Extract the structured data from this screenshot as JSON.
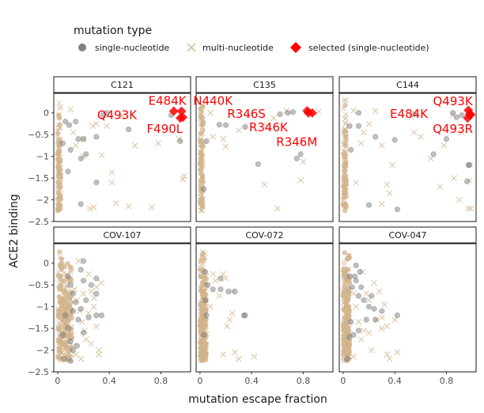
{
  "chart_data": {
    "type": "scatter",
    "xlabel": "mutation escape fraction",
    "ylabel": "ACE2 binding",
    "xlim": [
      -0.03,
      1.03
    ],
    "ylim": [
      -2.5,
      0.45
    ],
    "xticks": [
      0,
      0.4,
      0.8
    ],
    "xtick_labels": [
      "0",
      "0.4",
      "0.8"
    ],
    "yticks": [
      0,
      -0.5,
      -1,
      -1.5,
      -2,
      -2.5
    ],
    "ytick_labels": [
      "0",
      "−0.5",
      "−1",
      "−1.5",
      "−2",
      "−2.5"
    ],
    "grid": false,
    "legend": {
      "title": "mutation type",
      "position": "top-left",
      "items": [
        {
          "label": "single-nucleotide",
          "marker": "circle",
          "color": "#808080"
        },
        {
          "label": "multi-nucleotide",
          "marker": "x",
          "color": "#d2b48c"
        },
        {
          "label": "selected (single-nucleotide)",
          "marker": "diamond",
          "color": "#ff0000"
        }
      ]
    },
    "colors": {
      "single": "#808080",
      "multi": "#d2b48c",
      "selected": "#ff0000"
    },
    "facets": [
      {
        "name": "C121",
        "single": [
          [
            0.06,
            -0.2
          ],
          [
            0.09,
            -0.28
          ],
          [
            0.14,
            -0.2
          ],
          [
            0.16,
            -0.6
          ],
          [
            0.2,
            -0.6
          ],
          [
            0.22,
            -0.95
          ],
          [
            0.18,
            -1.05
          ],
          [
            0.3,
            -1.6
          ],
          [
            0.18,
            -2.1
          ],
          [
            0.3,
            -0.55
          ],
          [
            0.35,
            -0.05
          ],
          [
            0.38,
            0.0
          ],
          [
            0.55,
            -0.38
          ],
          [
            0.88,
            -0.05
          ],
          [
            0.95,
            -0.65
          ],
          [
            0.08,
            -1.35
          ],
          [
            0.1,
            -0.85
          ],
          [
            0.04,
            -0.7
          ]
        ],
        "multi": [
          [
            0.1,
            0.08
          ],
          [
            0.12,
            -0.45
          ],
          [
            0.14,
            -0.75
          ],
          [
            0.2,
            -1.0
          ],
          [
            0.27,
            -0.3
          ],
          [
            0.3,
            -0.25
          ],
          [
            0.34,
            -0.97
          ],
          [
            0.38,
            -0.3
          ],
          [
            0.42,
            -1.37
          ],
          [
            0.45,
            -2.08
          ],
          [
            0.5,
            -0.07
          ],
          [
            0.55,
            -2.15
          ],
          [
            0.6,
            -0.75
          ],
          [
            0.73,
            -2.17
          ],
          [
            0.78,
            -0.7
          ],
          [
            0.94,
            -0.6
          ],
          [
            0.98,
            -1.45
          ],
          [
            0.97,
            -1.53
          ],
          [
            0.25,
            -2.2
          ],
          [
            0.28,
            -2.17
          ],
          [
            0.2,
            -0.6
          ],
          [
            0.42,
            -1.6
          ]
        ],
        "selected": [
          [
            0.9,
            0.04
          ],
          [
            0.96,
            0.04
          ],
          [
            0.97,
            -0.1
          ],
          [
            0.95,
            -0.12
          ]
        ],
        "annotations": [
          {
            "label": "E484K",
            "x": 0.85,
            "y": 0.28
          },
          {
            "label": "Q493K",
            "x": 0.46,
            "y": -0.05
          },
          {
            "label": "F490L",
            "x": 0.83,
            "y": -0.37
          }
        ]
      },
      {
        "name": "C135",
        "single": [
          [
            0.2,
            -0.28
          ],
          [
            0.15,
            -0.27
          ],
          [
            0.35,
            -0.32
          ],
          [
            0.45,
            -1.18
          ],
          [
            0.75,
            -1.05
          ],
          [
            0.78,
            -0.95
          ],
          [
            0.62,
            -0.03
          ],
          [
            0.68,
            0.0
          ],
          [
            0.72,
            0.02
          ],
          [
            0.05,
            -0.65
          ],
          [
            0.03,
            -1.75
          ]
        ],
        "multi": [
          [
            0.08,
            0.0
          ],
          [
            0.1,
            -0.55
          ],
          [
            0.18,
            -0.6
          ],
          [
            0.2,
            -0.77
          ],
          [
            0.38,
            -0.05
          ],
          [
            0.5,
            -1.65
          ],
          [
            0.57,
            -0.12
          ],
          [
            0.6,
            -2.2
          ],
          [
            0.67,
            0.05
          ],
          [
            0.8,
            -1.12
          ],
          [
            0.78,
            -1.55
          ],
          [
            0.52,
            -0.3
          ],
          [
            0.3,
            -0.4
          ],
          [
            0.92,
            0.03
          ]
        ],
        "selected": [
          [
            0.83,
            0.05
          ],
          [
            0.84,
            0.0
          ],
          [
            0.87,
            0.0
          ]
        ],
        "annotations": [
          {
            "label": "N440K",
            "x": 0.1,
            "y": 0.28
          },
          {
            "label": "R346S",
            "x": 0.36,
            "y": -0.02
          },
          {
            "label": "R346K",
            "x": 0.53,
            "y": -0.33
          },
          {
            "label": "R346M",
            "x": 0.75,
            "y": -0.67
          }
        ]
      },
      {
        "name": "C144",
        "single": [
          [
            0.05,
            -0.3
          ],
          [
            0.06,
            -0.85
          ],
          [
            0.12,
            -0.3
          ],
          [
            0.2,
            -2.12
          ],
          [
            0.25,
            -0.55
          ],
          [
            0.42,
            -2.22
          ],
          [
            0.4,
            -0.62
          ],
          [
            0.55,
            -0.03
          ],
          [
            0.7,
            -0.95
          ],
          [
            0.8,
            -0.6
          ],
          [
            0.85,
            0.0
          ],
          [
            0.88,
            -0.1
          ],
          [
            0.92,
            -0.05
          ],
          [
            0.97,
            -1.2
          ],
          [
            0.98,
            -1.2
          ],
          [
            0.96,
            -1.58
          ],
          [
            0.12,
            0.0
          ]
        ],
        "multi": [
          [
            0.08,
            0.05
          ],
          [
            0.1,
            -1.6
          ],
          [
            0.14,
            -0.7
          ],
          [
            0.16,
            -0.45
          ],
          [
            0.25,
            0.05
          ],
          [
            0.3,
            -0.75
          ],
          [
            0.34,
            -1.65
          ],
          [
            0.36,
            -1.85
          ],
          [
            0.38,
            -1.2
          ],
          [
            0.53,
            -0.1
          ],
          [
            0.55,
            -0.45
          ],
          [
            0.6,
            -0.55
          ],
          [
            0.68,
            -1.05
          ],
          [
            0.75,
            -1.7
          ],
          [
            0.78,
            -0.75
          ],
          [
            0.86,
            -1.5
          ],
          [
            0.92,
            -0.45
          ],
          [
            0.97,
            -2.2
          ],
          [
            0.99,
            -2.2
          ],
          [
            0.98,
            -1.55
          ],
          [
            0.3,
            -2.1
          ],
          [
            0.2,
            -0.25
          ],
          [
            0.9,
            -2.0
          ],
          [
            0.85,
            -0.05
          ]
        ],
        "selected": [
          [
            0.97,
            0.06
          ],
          [
            0.98,
            -0.03
          ],
          [
            0.99,
            -0.04
          ],
          [
            0.965,
            -0.12
          ]
        ],
        "annotations": [
          {
            "label": "Q493K",
            "x": 0.85,
            "y": 0.27
          },
          {
            "label": "E484K",
            "x": 0.51,
            "y": -0.02
          },
          {
            "label": "Q493R",
            "x": 0.85,
            "y": -0.37
          }
        ]
      },
      {
        "name": "COV-107",
        "single": [
          [
            0.08,
            -0.3
          ],
          [
            0.1,
            -0.5
          ],
          [
            0.12,
            -0.7
          ],
          [
            0.14,
            -0.9
          ],
          [
            0.06,
            -1.2
          ],
          [
            0.08,
            -1.5
          ],
          [
            0.1,
            -1.8
          ],
          [
            0.12,
            -2.0
          ],
          [
            0.16,
            -1.3
          ],
          [
            0.18,
            -1.05
          ],
          [
            0.2,
            -0.4
          ],
          [
            0.22,
            -0.85
          ],
          [
            0.24,
            -1.25
          ],
          [
            0.26,
            -0.5
          ],
          [
            0.3,
            -0.35
          ],
          [
            0.3,
            -0.7
          ],
          [
            0.3,
            -1.2
          ],
          [
            0.34,
            -1.2
          ],
          [
            0.2,
            -1.6
          ],
          [
            0.15,
            -1.9
          ],
          [
            0.05,
            -2.2
          ],
          [
            0.1,
            -2.25
          ],
          [
            0.12,
            -1.1
          ],
          [
            0.18,
            -0.15
          ],
          [
            0.2,
            0.05
          ],
          [
            0.04,
            -1.65
          ]
        ],
        "multi": [
          [
            0.1,
            -0.4
          ],
          [
            0.13,
            -0.6
          ],
          [
            0.15,
            -0.85
          ],
          [
            0.17,
            -1.1
          ],
          [
            0.19,
            -1.35
          ],
          [
            0.21,
            -1.55
          ],
          [
            0.24,
            -0.25
          ],
          [
            0.26,
            -0.65
          ],
          [
            0.28,
            -1.0
          ],
          [
            0.3,
            -1.45
          ],
          [
            0.32,
            -2.0
          ],
          [
            0.32,
            -2.1
          ],
          [
            0.26,
            -1.85
          ],
          [
            0.22,
            -1.75
          ],
          [
            0.18,
            -2.2
          ],
          [
            0.14,
            -2.1
          ],
          [
            0.3,
            -0.55
          ],
          [
            0.34,
            -0.45
          ],
          [
            0.12,
            -1.9
          ],
          [
            0.08,
            -1.45
          ],
          [
            0.16,
            0.05
          ],
          [
            0.24,
            -1.15
          ],
          [
            0.28,
            -0.8
          ],
          [
            0.2,
            -0.7
          ]
        ],
        "selected": [],
        "annotations": []
      },
      {
        "name": "COV-072",
        "single": [
          [
            0.04,
            -0.2
          ],
          [
            0.06,
            -0.5
          ],
          [
            0.1,
            -0.6
          ],
          [
            0.16,
            -0.6
          ],
          [
            0.16,
            -0.35
          ],
          [
            0.22,
            -0.65
          ],
          [
            0.27,
            -0.65
          ],
          [
            0.34,
            -1.2
          ],
          [
            0.35,
            -1.2
          ],
          [
            0.04,
            -0.85
          ],
          [
            0.05,
            -1.2
          ],
          [
            0.03,
            -1.65
          ]
        ],
        "multi": [
          [
            0.05,
            -0.3
          ],
          [
            0.1,
            -0.25
          ],
          [
            0.12,
            -0.4
          ],
          [
            0.18,
            -0.25
          ],
          [
            0.2,
            -0.35
          ],
          [
            0.21,
            -1.45
          ],
          [
            0.23,
            -1.3
          ],
          [
            0.25,
            -1.15
          ],
          [
            0.27,
            -2.05
          ],
          [
            0.3,
            -2.2
          ],
          [
            0.25,
            -0.65
          ],
          [
            0.42,
            -2.15
          ],
          [
            0.18,
            -2.1
          ],
          [
            0.15,
            -0.75
          ],
          [
            0.08,
            -1.0
          ]
        ],
        "selected": [],
        "annotations": []
      },
      {
        "name": "COV-047",
        "single": [
          [
            0.05,
            -0.3
          ],
          [
            0.07,
            -0.55
          ],
          [
            0.09,
            -0.3
          ],
          [
            0.1,
            -0.4
          ],
          [
            0.12,
            -0.75
          ],
          [
            0.14,
            -0.55
          ],
          [
            0.16,
            -0.85
          ],
          [
            0.18,
            -1.3
          ],
          [
            0.2,
            -1.0
          ],
          [
            0.22,
            -0.75
          ],
          [
            0.24,
            -1.05
          ],
          [
            0.25,
            -1.3
          ],
          [
            0.3,
            -1.1
          ],
          [
            0.42,
            -1.2
          ],
          [
            0.06,
            -1.35
          ],
          [
            0.05,
            -1.7
          ],
          [
            0.08,
            -1.65
          ],
          [
            0.1,
            -0.05
          ],
          [
            0.13,
            -0.2
          ],
          [
            0.12,
            -1.55
          ],
          [
            0.03,
            -2.2
          ]
        ],
        "multi": [
          [
            0.08,
            -0.7
          ],
          [
            0.1,
            -1.0
          ],
          [
            0.12,
            -1.35
          ],
          [
            0.14,
            -1.75
          ],
          [
            0.16,
            -1.55
          ],
          [
            0.18,
            -0.7
          ],
          [
            0.2,
            -1.6
          ],
          [
            0.24,
            -0.45
          ],
          [
            0.26,
            -1.3
          ],
          [
            0.28,
            -0.65
          ],
          [
            0.3,
            -1.25
          ],
          [
            0.32,
            -0.95
          ],
          [
            0.34,
            -1.45
          ],
          [
            0.34,
            -2.1
          ],
          [
            0.36,
            -2.2
          ],
          [
            0.4,
            -1.3
          ],
          [
            0.42,
            -2.05
          ],
          [
            0.2,
            -0.85
          ],
          [
            0.15,
            -0.2
          ],
          [
            0.22,
            -2.0
          ],
          [
            0.08,
            -2.15
          ],
          [
            0.3,
            -1.5
          ]
        ],
        "selected": [],
        "annotations": []
      }
    ]
  }
}
